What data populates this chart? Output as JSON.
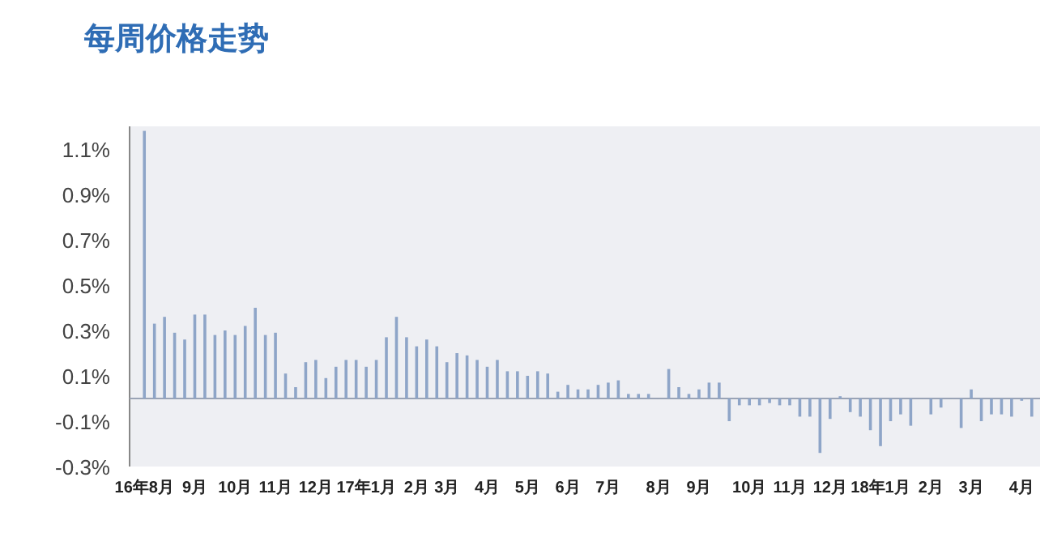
{
  "chart_data": {
    "type": "bar",
    "title": "每周价格走势",
    "categories": [
      "16年8月",
      null,
      null,
      null,
      null,
      "9月",
      null,
      null,
      null,
      "10月",
      null,
      null,
      null,
      "11月",
      null,
      null,
      null,
      "12月",
      null,
      null,
      null,
      null,
      "17年1月",
      null,
      null,
      null,
      null,
      "2月",
      null,
      null,
      "3月",
      null,
      null,
      null,
      "4月",
      null,
      null,
      null,
      "5月",
      null,
      null,
      null,
      "6月",
      null,
      null,
      null,
      "7月",
      null,
      null,
      null,
      null,
      "8月",
      null,
      null,
      null,
      "9月",
      null,
      null,
      null,
      null,
      "10月",
      null,
      null,
      null,
      "11月",
      null,
      null,
      null,
      "12月",
      null,
      null,
      null,
      null,
      "18年1月",
      null,
      null,
      null,
      null,
      "2月",
      null,
      null,
      null,
      "3月",
      null,
      null,
      null,
      null,
      "4月",
      null
    ],
    "values": [
      1.18,
      0.33,
      0.36,
      0.29,
      0.26,
      0.37,
      0.37,
      0.28,
      0.3,
      0.28,
      0.32,
      0.4,
      0.28,
      0.29,
      0.11,
      0.05,
      0.16,
      0.17,
      0.09,
      0.14,
      0.17,
      0.17,
      0.14,
      0.17,
      0.27,
      0.36,
      0.27,
      0.23,
      0.26,
      0.23,
      0.16,
      0.2,
      0.19,
      0.17,
      0.14,
      0.17,
      0.12,
      0.12,
      0.1,
      0.12,
      0.11,
      0.03,
      0.06,
      0.04,
      0.04,
      0.06,
      0.07,
      0.08,
      0.02,
      0.02,
      0.02,
      0.0,
      0.13,
      0.05,
      0.02,
      0.04,
      0.07,
      0.07,
      -0.1,
      -0.03,
      -0.03,
      -0.03,
      -0.02,
      -0.03,
      -0.03,
      -0.08,
      -0.08,
      -0.24,
      -0.09,
      0.01,
      -0.06,
      -0.08,
      -0.14,
      -0.21,
      -0.1,
      -0.07,
      -0.12,
      0.0,
      -0.07,
      -0.04,
      0.0,
      -0.13,
      0.04,
      -0.1,
      -0.07,
      -0.07,
      -0.08,
      -0.01,
      -0.08
    ],
    "color": "#8ea5c8",
    "ylim": [
      -0.3,
      1.2
    ],
    "yticks": [
      {
        "value": -0.3,
        "label": "-0.3%"
      },
      {
        "value": -0.1,
        "label": "-0.1%"
      },
      {
        "value": 0.1,
        "label": "0.1%"
      },
      {
        "value": 0.3,
        "label": "0.3%"
      },
      {
        "value": 0.5,
        "label": "0.5%"
      },
      {
        "value": 0.7,
        "label": "0.7%"
      },
      {
        "value": 0.9,
        "label": "0.9%"
      },
      {
        "value": 1.1,
        "label": "1.1%"
      }
    ]
  }
}
